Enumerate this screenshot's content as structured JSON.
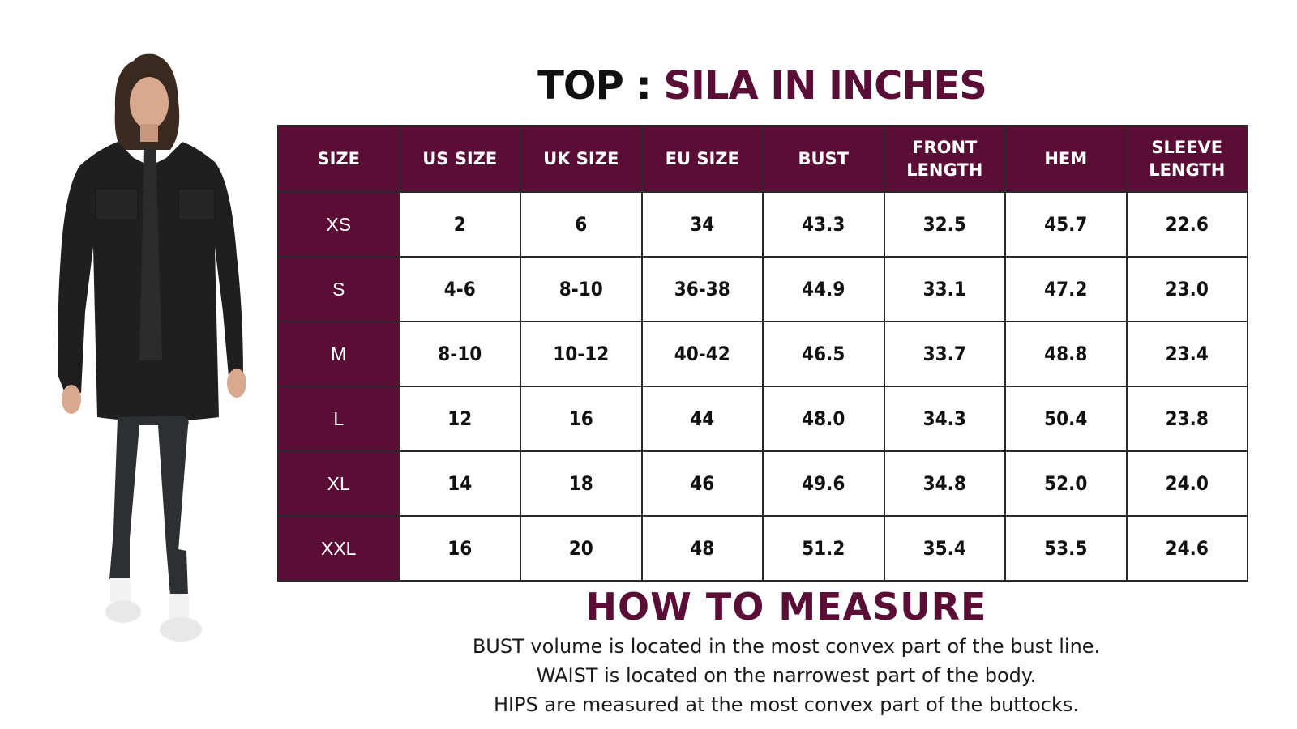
{
  "title": {
    "prefix": "TOP : ",
    "accent": "SILA IN INCHES"
  },
  "table": {
    "headers": [
      "SIZE",
      "US SIZE",
      "UK SIZE",
      "EU SIZE",
      "BUST",
      "FRONT\nLENGTH",
      "HEM",
      "SLEEVE\nLENGTH"
    ],
    "rows": [
      [
        "XS",
        "2",
        "6",
        "34",
        "43.3",
        "32.5",
        "45.7",
        "22.6"
      ],
      [
        "S",
        "4-6",
        "8-10",
        "36-38",
        "44.9",
        "33.1",
        "47.2",
        "23.0"
      ],
      [
        "M",
        "8-10",
        "10-12",
        "40-42",
        "46.5",
        "33.7",
        "48.8",
        "23.4"
      ],
      [
        "L",
        "12",
        "16",
        "44",
        "48.0",
        "34.3",
        "50.4",
        "23.8"
      ],
      [
        "XL",
        "14",
        "18",
        "46",
        "49.6",
        "34.8",
        "52.0",
        "24.0"
      ],
      [
        "XXL",
        "16",
        "20",
        "48",
        "51.2",
        "35.4",
        "53.5",
        "24.6"
      ]
    ]
  },
  "measure": {
    "title": "HOW TO MEASURE",
    "lines": [
      "BUST volume is located in the most convex part of the bust line.",
      "WAIST is located on the narrowest part of the body.",
      "HIPS are measured at the most convex part of the buttocks."
    ]
  },
  "colors": {
    "accent": "#5a0e36",
    "text": "#111111"
  }
}
